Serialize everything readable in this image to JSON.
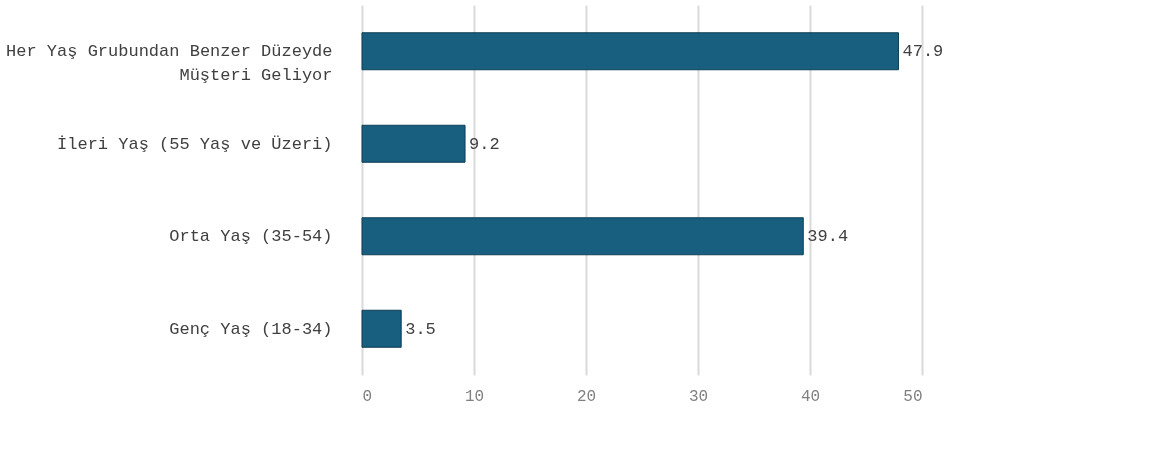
{
  "chart_data": {
    "type": "bar",
    "orientation": "horizontal",
    "categories": [
      "Her Yaş Grubundan Benzer Düzeyde Müşteri Geliyor",
      "İleri Yaş (55 Yaş ve Üzeri)",
      "Orta Yaş (35-54)",
      "Genç Yaş (18-34)"
    ],
    "values": [
      47.9,
      9.2,
      39.4,
      3.5
    ],
    "color": "#175e7f",
    "xlim": [
      0,
      50
    ],
    "xticks": [
      0,
      10,
      20,
      30,
      40,
      50
    ],
    "grid": "x",
    "data_labels": true
  }
}
